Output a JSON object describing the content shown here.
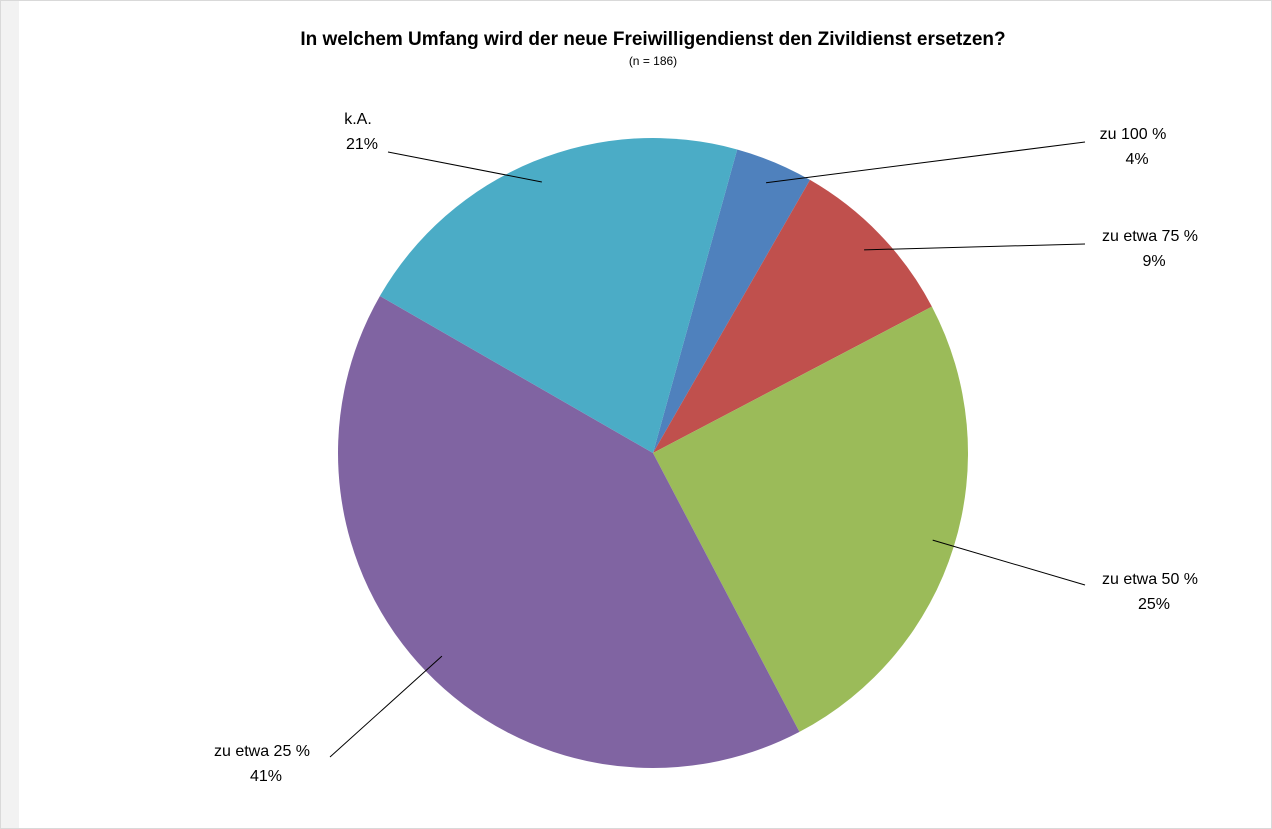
{
  "chart_data": {
    "type": "pie",
    "title": "In welchem Umfang wird der neue Freiwilligendienst den Zivildienst ersetzen?",
    "subtitle": "(n = 186)",
    "categories": [
      "zu 100 %",
      "zu etwa 75 %",
      "zu etwa 50 %",
      "zu etwa 25 %",
      "k.A."
    ],
    "values": [
      4,
      9,
      25,
      41,
      21
    ],
    "value_labels": [
      "4%",
      "9%",
      "25%",
      "41%",
      "21%"
    ],
    "colors": [
      "#4f81bd",
      "#c0504d",
      "#9bbb59",
      "#8064a2",
      "#4bacc6"
    ]
  }
}
